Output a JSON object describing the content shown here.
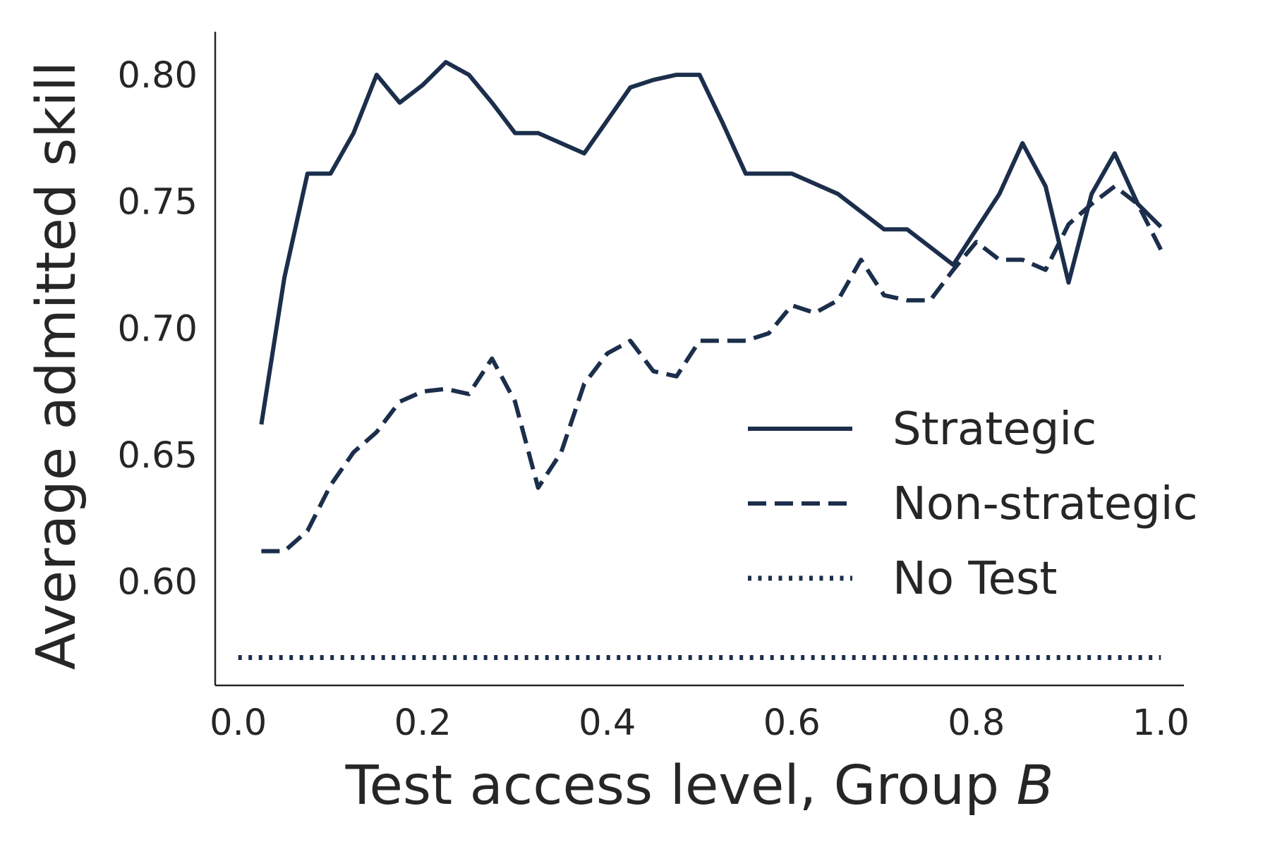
{
  "chart_data": {
    "type": "line",
    "title": "",
    "xlabel": "Test access level, Group ",
    "xlabel_italic": "B",
    "ylabel": "Average admitted skill",
    "xlim": [
      -0.025,
      1.025
    ],
    "ylim": [
      0.559,
      0.817
    ],
    "xticks": [
      0.0,
      0.2,
      0.4,
      0.6,
      0.8,
      1.0
    ],
    "xtick_labels": [
      "0.0",
      "0.2",
      "0.4",
      "0.6",
      "0.8",
      "1.0"
    ],
    "yticks": [
      0.6,
      0.65,
      0.7,
      0.75,
      0.8
    ],
    "ytick_labels": [
      "0.60",
      "0.65",
      "0.70",
      "0.75",
      "0.80"
    ],
    "grid": false,
    "legend_position": "lower-right",
    "line_color": "#1b2e4b",
    "series": [
      {
        "name": "Strategic",
        "style": "solid",
        "x": [
          0.025,
          0.05,
          0.075,
          0.1,
          0.125,
          0.15,
          0.175,
          0.2,
          0.225,
          0.25,
          0.275,
          0.3,
          0.325,
          0.35,
          0.375,
          0.4,
          0.425,
          0.45,
          0.475,
          0.5,
          0.525,
          0.55,
          0.575,
          0.6,
          0.625,
          0.65,
          0.675,
          0.7,
          0.725,
          0.75,
          0.775,
          0.8,
          0.825,
          0.85,
          0.875,
          0.9,
          0.925,
          0.95,
          0.975,
          1.0
        ],
        "y": [
          0.662,
          0.72,
          0.761,
          0.761,
          0.777,
          0.8,
          0.789,
          0.796,
          0.805,
          0.8,
          0.789,
          0.777,
          0.777,
          0.773,
          0.769,
          0.782,
          0.795,
          0.798,
          0.8,
          0.8,
          0.781,
          0.761,
          0.761,
          0.761,
          0.757,
          0.753,
          0.746,
          0.739,
          0.739,
          0.732,
          0.725,
          0.739,
          0.753,
          0.773,
          0.756,
          0.718,
          0.753,
          0.769,
          0.749,
          0.74
        ]
      },
      {
        "name": "Non-strategic",
        "style": "dashed",
        "x": [
          0.025,
          0.05,
          0.075,
          0.1,
          0.125,
          0.15,
          0.175,
          0.2,
          0.225,
          0.25,
          0.275,
          0.3,
          0.325,
          0.35,
          0.375,
          0.4,
          0.425,
          0.45,
          0.475,
          0.5,
          0.525,
          0.55,
          0.575,
          0.6,
          0.625,
          0.65,
          0.675,
          0.7,
          0.725,
          0.75,
          0.775,
          0.8,
          0.825,
          0.85,
          0.875,
          0.9,
          0.925,
          0.95,
          0.975,
          1.0
        ],
        "y": [
          0.612,
          0.612,
          0.62,
          0.638,
          0.651,
          0.659,
          0.671,
          0.675,
          0.676,
          0.674,
          0.688,
          0.671,
          0.637,
          0.651,
          0.678,
          0.69,
          0.695,
          0.683,
          0.681,
          0.695,
          0.695,
          0.695,
          0.698,
          0.709,
          0.706,
          0.711,
          0.727,
          0.713,
          0.711,
          0.711,
          0.723,
          0.734,
          0.727,
          0.727,
          0.723,
          0.741,
          0.749,
          0.756,
          0.749,
          0.731
        ]
      },
      {
        "name": "No Test",
        "style": "dotted",
        "x": [
          0.0,
          1.0
        ],
        "y": [
          0.57,
          0.57
        ]
      }
    ]
  }
}
